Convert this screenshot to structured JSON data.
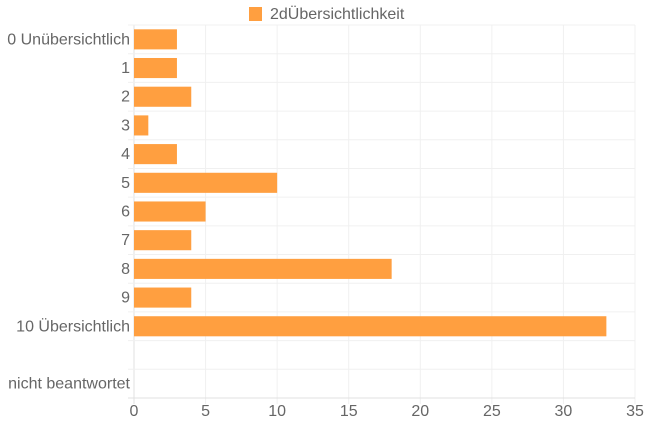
{
  "chart_data": {
    "type": "bar",
    "orientation": "horizontal",
    "title": "",
    "xlabel": "",
    "ylabel": "",
    "categories": [
      "0 Unübersichtlich",
      "1",
      "2",
      "3",
      "4",
      "5",
      "6",
      "7",
      "8",
      "9",
      "10 Übersichtlich",
      "",
      "nicht beantwortet"
    ],
    "series": [
      {
        "name": "2dÜbersichtlichkeit",
        "color": "#ff9f40",
        "values": [
          3,
          3,
          4,
          1,
          3,
          10,
          5,
          4,
          18,
          4,
          33,
          0,
          0
        ]
      }
    ],
    "xlim": [
      0,
      35
    ],
    "xticks": [
      "0",
      "5",
      "10",
      "15",
      "20",
      "25",
      "30",
      "35"
    ],
    "xtick_values": [
      0,
      5,
      10,
      15,
      20,
      25,
      30,
      35
    ],
    "grid": true,
    "legend": "top-center"
  }
}
